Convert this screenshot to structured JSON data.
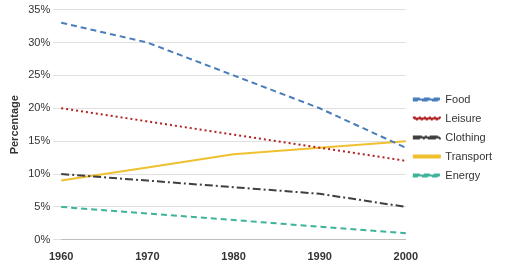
{
  "chart_data": {
    "type": "line",
    "y_label": "Percentage",
    "categories": [
      "1960",
      "1970",
      "1980",
      "1990",
      "2000"
    ],
    "series": [
      {
        "name": "Food",
        "color": "#4a7ebb",
        "line_style": "dashed",
        "values": [
          33,
          30,
          25,
          20,
          14
        ]
      },
      {
        "name": "Leisure",
        "color": "#b22222",
        "line_style": "dotted",
        "values": [
          20,
          18,
          16,
          14,
          12
        ]
      },
      {
        "name": "Clothing",
        "color": "#404040",
        "line_style": "dashdot",
        "values": [
          10,
          9,
          8,
          7,
          5
        ]
      },
      {
        "name": "Transport",
        "color": "#f0c030",
        "line_style": "solid",
        "values": [
          9,
          11,
          13,
          14,
          15
        ]
      },
      {
        "name": "Energy",
        "color": "#3db39a",
        "line_style": "dashed",
        "values": [
          5,
          4,
          3,
          2,
          1
        ]
      }
    ],
    "ylim": [
      0,
      35
    ],
    "yticks": [
      {
        "value": 0,
        "label": "0%"
      },
      {
        "value": 5,
        "label": "5%"
      },
      {
        "value": 10,
        "label": "10%"
      },
      {
        "value": 15,
        "label": "15%"
      },
      {
        "value": 20,
        "label": "20%"
      },
      {
        "value": 25,
        "label": "25%"
      },
      {
        "value": 30,
        "label": "30%"
      },
      {
        "value": 35,
        "label": "35%"
      }
    ],
    "grid": "y",
    "legend": "right"
  }
}
